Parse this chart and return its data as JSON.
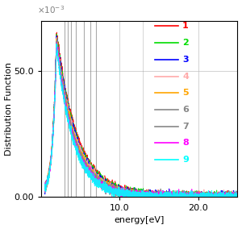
{
  "xlabel": "energy[eV]",
  "ylabel": "Distribution Function",
  "xlim": [
    0,
    25
  ],
  "ylim": [
    0,
    0.07
  ],
  "y_tick_positions": [
    0.0,
    0.05
  ],
  "y_tick_labels": [
    "0.00",
    "50.0"
  ],
  "x_tick_positions": [
    10.0,
    20.0
  ],
  "x_tick_labels": [
    "10.0",
    "20.0"
  ],
  "yscale_label": "x10^{-3}",
  "series_colors": [
    "red",
    "#00dd00",
    "blue",
    "#ffaaaa",
    "orange",
    "#888888",
    "#888888",
    "magenta",
    "cyan"
  ],
  "legend_labels": [
    "1",
    "2",
    "3",
    "4",
    "5",
    "6",
    "7",
    "8",
    "9"
  ],
  "legend_text_colors": [
    "red",
    "#00dd00",
    "blue",
    "#ffaaaa",
    "orange",
    "#888888",
    "#888888",
    "magenta",
    "cyan"
  ],
  "n_series": 9,
  "decay_base": 0.38,
  "peak_value": 0.065,
  "spike_positions": [
    3.0,
    3.4,
    3.8,
    4.5,
    5.5,
    6.3,
    7.0
  ],
  "spike_color": "#888888",
  "grid_color": "#c0c0c0"
}
